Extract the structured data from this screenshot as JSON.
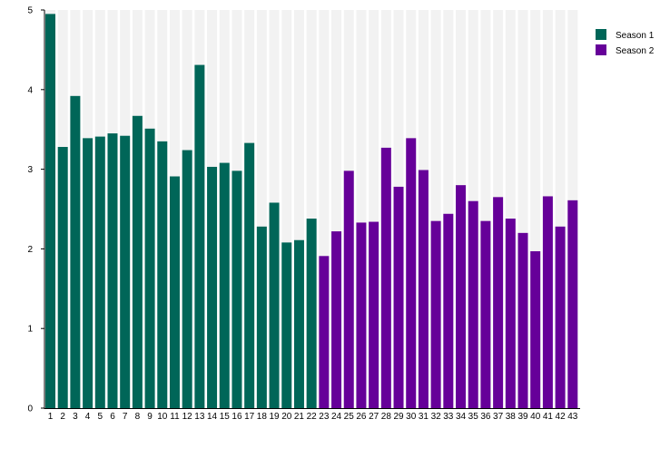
{
  "chart_data": {
    "type": "bar",
    "title": "",
    "xlabel": "",
    "ylabel": "",
    "ylim": [
      0,
      5
    ],
    "yticks": [
      0,
      1,
      2,
      3,
      4,
      5
    ],
    "grid": false,
    "legend_placement": "top-right",
    "categories": [
      "1",
      "2",
      "3",
      "4",
      "5",
      "6",
      "7",
      "8",
      "9",
      "10",
      "11",
      "12",
      "13",
      "14",
      "15",
      "16",
      "17",
      "18",
      "19",
      "20",
      "21",
      "22",
      "23",
      "24",
      "25",
      "26",
      "27",
      "28",
      "29",
      "30",
      "31",
      "32",
      "33",
      "34",
      "35",
      "36",
      "37",
      "38",
      "39",
      "40",
      "41",
      "42",
      "43"
    ],
    "values": [
      4.95,
      3.28,
      3.92,
      3.39,
      3.41,
      3.45,
      3.42,
      3.67,
      3.51,
      3.35,
      2.91,
      3.24,
      4.31,
      3.03,
      3.08,
      2.98,
      3.33,
      2.28,
      2.58,
      2.08,
      2.11,
      2.38,
      1.91,
      2.22,
      2.98,
      2.33,
      2.34,
      3.27,
      2.78,
      3.39,
      2.99,
      2.35,
      2.44,
      2.8,
      2.6,
      2.35,
      2.65,
      2.38,
      2.2,
      1.97,
      2.66,
      2.28,
      2.61
    ],
    "series": [
      {
        "name": "Season 1",
        "color": "#006658",
        "episodes": "1-22"
      },
      {
        "name": "Season 2",
        "color": "#660099",
        "episodes": "23-43"
      }
    ],
    "season_split": 22,
    "background_stripe_color": "#f2f2f2"
  }
}
